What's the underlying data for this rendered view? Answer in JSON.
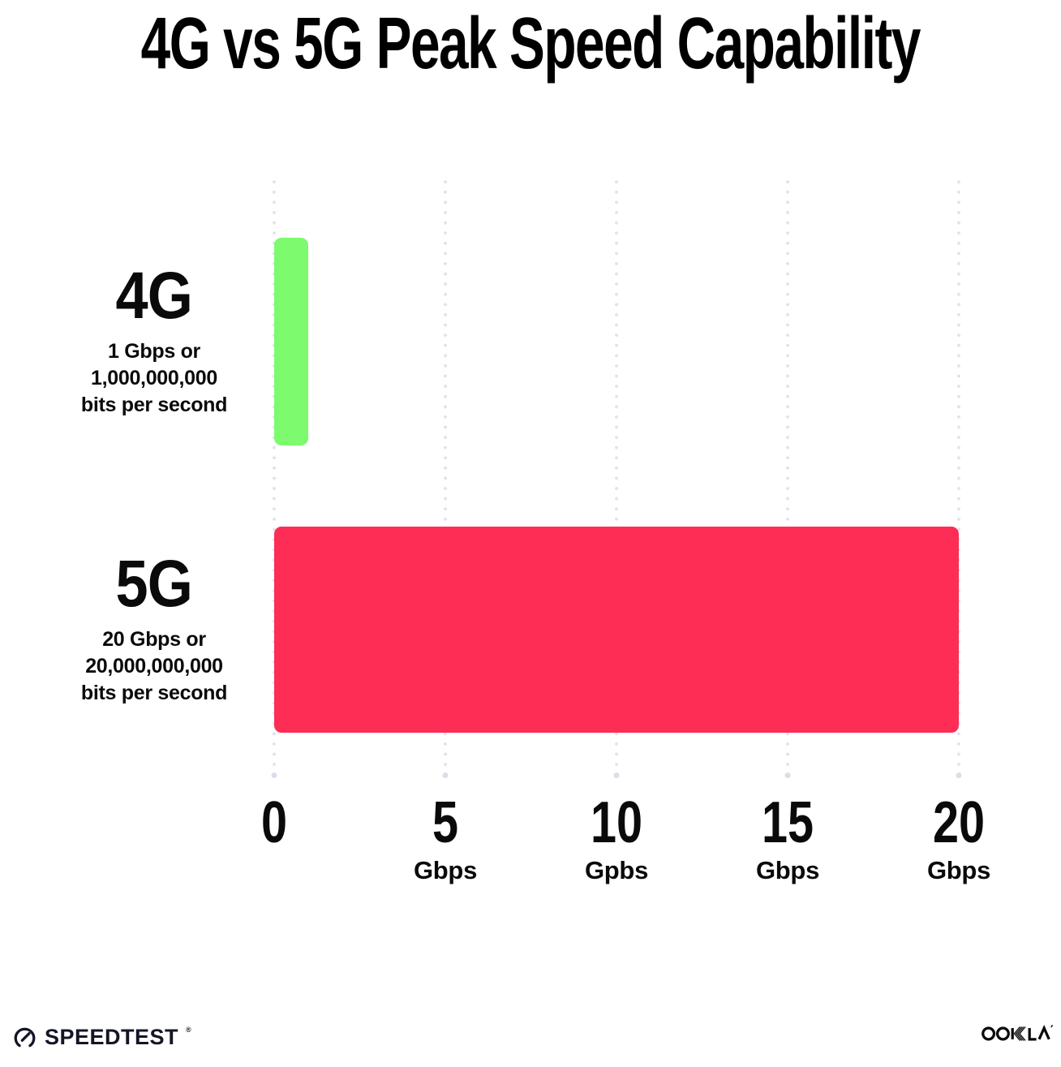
{
  "chart_data": {
    "type": "bar",
    "orientation": "horizontal",
    "title": "4G vs 5G Peak Speed Capability",
    "categories": [
      "4G",
      "5G"
    ],
    "values": [
      1,
      20
    ],
    "unit": "Gbps",
    "xlabel": "",
    "ylabel": "",
    "xlim": [
      0,
      20
    ],
    "grid": "dotted-vertical",
    "legend": "none",
    "bars": [
      {
        "label": "4G",
        "value": 1,
        "color": "#7dfa6d",
        "sublabel_lines": [
          "1 Gbps or",
          "1,000,000,000",
          "bits per second"
        ]
      },
      {
        "label": "5G",
        "value": 20,
        "color": "#fd2d55",
        "sublabel_lines": [
          "20 Gbps or",
          "20,000,000,000",
          "bits per second"
        ]
      }
    ],
    "x_ticks": [
      {
        "num": "0",
        "unit": ""
      },
      {
        "num": "5",
        "unit": "Gbps"
      },
      {
        "num": "10",
        "unit": "Gpbs"
      },
      {
        "num": "15",
        "unit": "Gbps"
      },
      {
        "num": "20",
        "unit": "Gbps"
      }
    ]
  },
  "footer": {
    "speedtest_label": "SPEEDTEST",
    "speedtest_trademark": "®",
    "ookla_label": "OOKLA"
  },
  "colors": {
    "green": "#7dfa6d",
    "pink": "#fd2d55",
    "grid": "#e2e2ec",
    "grid_end": "#dcdde8",
    "text": "#0a0a0a"
  }
}
